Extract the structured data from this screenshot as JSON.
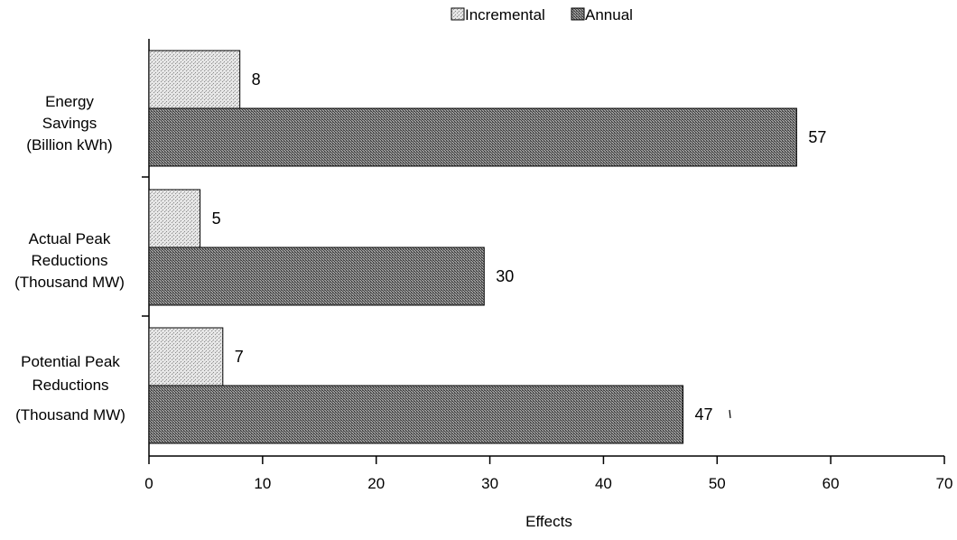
{
  "chart_data": {
    "type": "bar",
    "orientation": "horizontal",
    "title": "",
    "xlabel": "Effects",
    "ylabel": "",
    "xlim": [
      0,
      70
    ],
    "xticks": [
      "0",
      "10",
      "20",
      "30",
      "40",
      "50",
      "60",
      "70"
    ],
    "categories": [
      [
        "Energy",
        "Savings",
        "(Billion kWh)"
      ],
      [
        "Actual Peak",
        "Reductions",
        "(Thousand MW)"
      ],
      [
        "Potential Peak",
        "Reductions",
        "(Thousand MW)"
      ]
    ],
    "series": [
      {
        "name": "Incremental",
        "values": [
          8,
          4.5,
          6.5
        ],
        "labels": [
          "8",
          "5",
          "7"
        ],
        "color": "#d8d8d8",
        "pattern": "light-stipple"
      },
      {
        "name": "Annual",
        "values": [
          57,
          29.5,
          47
        ],
        "labels": [
          "57",
          "30",
          "47"
        ],
        "color": "#7a7a7a",
        "pattern": "dense-crosshatch"
      }
    ],
    "legend": {
      "position": "top-right",
      "entries": [
        "Incremental",
        "Annual"
      ]
    },
    "grid": false
  }
}
